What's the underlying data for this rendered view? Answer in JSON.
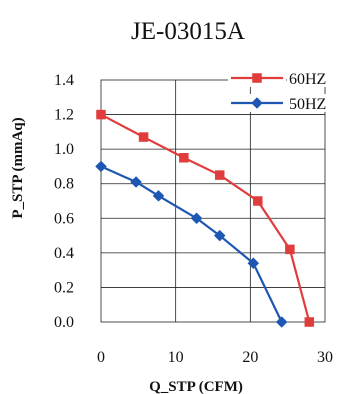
{
  "chart_data": {
    "type": "line",
    "title": "JE-03015A",
    "xlabel": "Q_STP  (CFM)",
    "ylabel": "P_STP (mmAq)",
    "xlim": [
      0,
      30
    ],
    "ylim": [
      0,
      1.4
    ],
    "xticks": [
      0,
      10,
      20,
      30
    ],
    "yticks": [
      0.0,
      0.2,
      0.4,
      0.6,
      0.8,
      1.0,
      1.2,
      1.4
    ],
    "xtick_labels": [
      "0",
      "10",
      "20",
      "30"
    ],
    "ytick_labels": [
      "0.0",
      "0.2",
      "0.4",
      "0.6",
      "0.8",
      "1.0",
      "1.2",
      "1.4"
    ],
    "grid": true,
    "legend_position": "top-right",
    "series": [
      {
        "name": "60HZ",
        "color": "#e03c3c",
        "marker": "square",
        "x": [
          0,
          5.7,
          11.1,
          15.9,
          21.0,
          25.3,
          27.9
        ],
        "y": [
          1.2,
          1.07,
          0.95,
          0.85,
          0.7,
          0.42,
          0.0
        ]
      },
      {
        "name": "50HZ",
        "color": "#1e57b3",
        "marker": "diamond",
        "x": [
          0,
          4.7,
          7.7,
          12.8,
          15.9,
          20.4,
          24.2
        ],
        "y": [
          0.9,
          0.81,
          0.73,
          0.6,
          0.5,
          0.34,
          0.0
        ]
      }
    ]
  }
}
